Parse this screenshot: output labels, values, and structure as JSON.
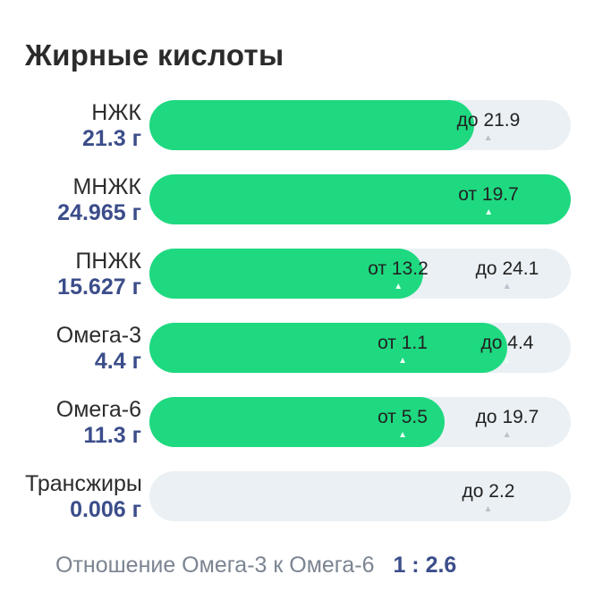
{
  "card": {
    "title": "Жирные кислоты"
  },
  "rows": [
    {
      "name": "НЖК",
      "amount": "21.3 г",
      "fill_fraction": 0.77,
      "markers": [
        {
          "text": "до 21.9",
          "position": 0.805
        }
      ]
    },
    {
      "name": "МНЖК",
      "amount": "24.965 г",
      "fill_fraction": 1.0,
      "markers": [
        {
          "text": "от 19.7",
          "position": 0.805
        }
      ]
    },
    {
      "name": "ПНЖК",
      "amount": "15.627 г",
      "fill_fraction": 0.65,
      "markers": [
        {
          "text": "от 13.2",
          "position": 0.59
        },
        {
          "text": "до 24.1",
          "position": 0.85
        }
      ]
    },
    {
      "name": "Омега-3",
      "amount": "4.4 г",
      "fill_fraction": 0.85,
      "markers": [
        {
          "text": "от 1.1",
          "position": 0.6
        },
        {
          "text": "до 4.4",
          "position": 0.85
        }
      ]
    },
    {
      "name": "Омега-6",
      "amount": "11.3 г",
      "fill_fraction": 0.7,
      "markers": [
        {
          "text": "от 5.5",
          "position": 0.6
        },
        {
          "text": "до 19.7",
          "position": 0.85
        }
      ]
    },
    {
      "name": "Трансжиры",
      "amount": "0.006 г",
      "fill_fraction": 0.0,
      "markers": [
        {
          "text": "до 2.2",
          "position": 0.805
        }
      ]
    }
  ],
  "ratio": {
    "label": "Отношение Омега-3 к Омега-6",
    "value": "1 : 2.6"
  },
  "colors": {
    "fill": "#1ed980",
    "track": "#eaf0f4",
    "amount_text": "#3b4d8a",
    "ratio_label": "#7b8491"
  }
}
